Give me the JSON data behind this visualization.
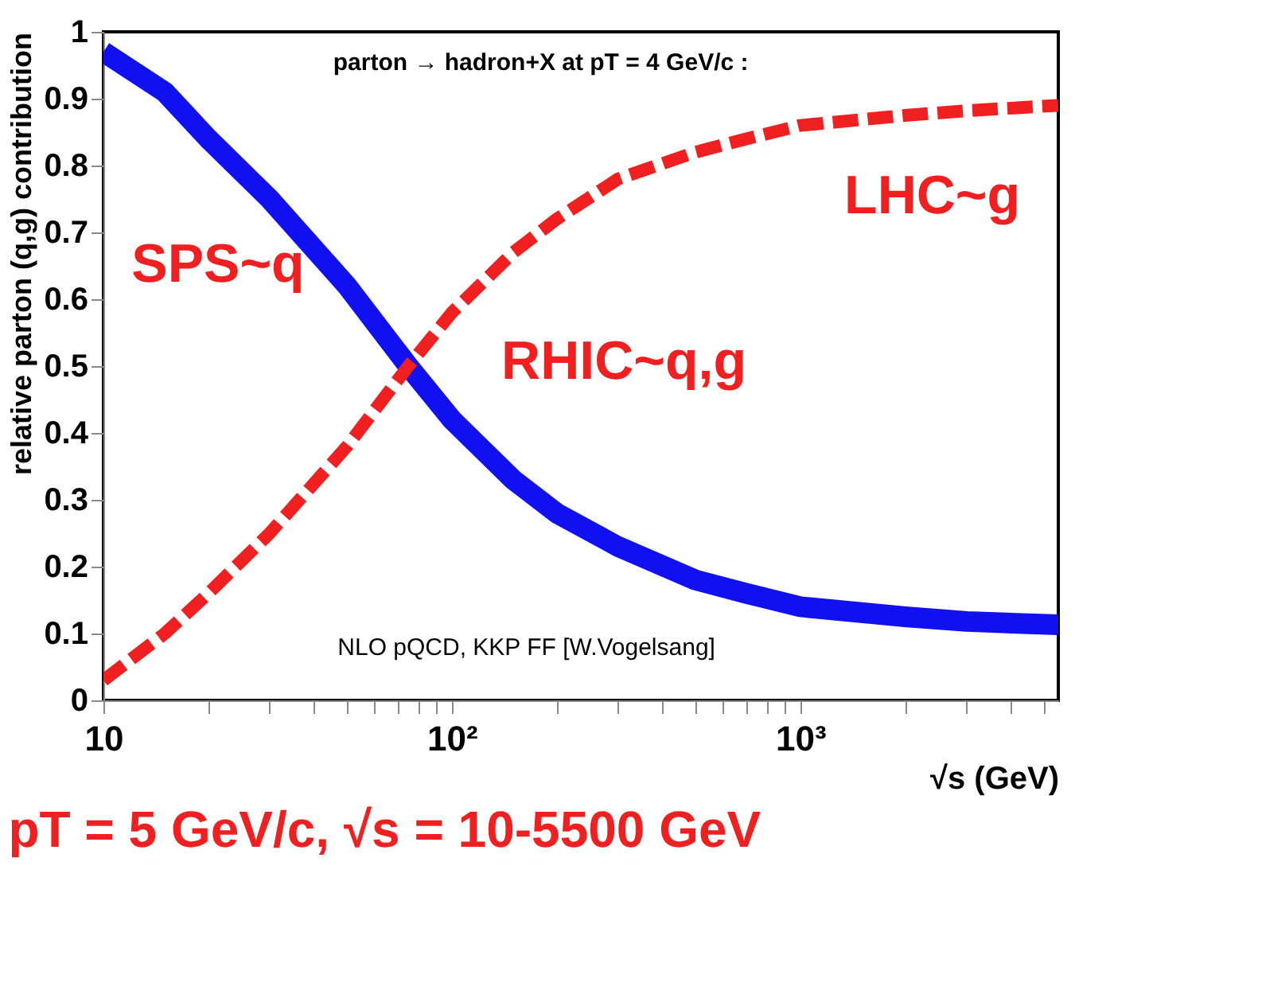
{
  "chart_data": {
    "type": "line",
    "title": "pT = 5 GeV/c, √s = 10-5500 GeV",
    "xlabel": "√s (GeV)",
    "ylabel": "relative parton (q,g) contribution",
    "log": "x",
    "grid": false,
    "marker": "none",
    "x": [
      10,
      15,
      20,
      30,
      50,
      75,
      100,
      150,
      200,
      300,
      500,
      700,
      1000,
      2000,
      3000,
      5500
    ],
    "series": [
      {
        "color": "#1010f0",
        "line_style": "solid",
        "values": [
          0.97,
          0.91,
          0.84,
          0.75,
          0.62,
          0.5,
          0.42,
          0.33,
          0.28,
          0.23,
          0.18,
          0.16,
          0.14,
          0.125,
          0.118,
          0.113
        ]
      },
      {
        "color": "#f02020",
        "line_style": "dashed",
        "values": [
          0.03,
          0.1,
          0.16,
          0.25,
          0.38,
          0.5,
          0.58,
          0.67,
          0.72,
          0.78,
          0.82,
          0.84,
          0.86,
          0.875,
          0.882,
          0.89
        ]
      }
    ],
    "xlim": [
      10,
      5500
    ],
    "ylim": [
      0,
      1
    ],
    "xticks": [
      10,
      {
        "value": 20,
        "label": null
      },
      {
        "value": 30,
        "label": null
      },
      {
        "value": 40,
        "label": null
      },
      {
        "value": 50,
        "label": null
      },
      {
        "value": 60,
        "label": null
      },
      {
        "value": 70,
        "label": null
      },
      {
        "value": 80,
        "label": null
      },
      {
        "value": 90,
        "label": null
      },
      {
        "value": 100,
        "label": "10²"
      },
      {
        "value": 200,
        "label": null
      },
      {
        "value": 300,
        "label": null
      },
      {
        "value": 400,
        "label": null
      },
      {
        "value": 500,
        "label": null
      },
      {
        "value": 600,
        "label": null
      },
      {
        "value": 700,
        "label": null
      },
      {
        "value": 800,
        "label": null
      },
      {
        "value": 900,
        "label": null
      },
      {
        "value": 1000,
        "label": "10³"
      },
      {
        "value": 2000,
        "label": null
      },
      {
        "value": 3000,
        "label": null
      },
      {
        "value": 4000,
        "label": null
      },
      {
        "value": 5000,
        "label": null
      }
    ],
    "yticks": [
      0,
      0.1,
      0.2,
      0.3,
      0.4,
      0.5,
      0.6,
      0.7,
      0.8,
      0.9,
      1
    ],
    "annotations": [
      "parton → hadron+X at pT = 4 GeV/c :",
      "NLO pQCD, KKP FF [W.Vogelsang]",
      "SPS~q",
      "RHIC~q,g",
      "LHC~g"
    ]
  }
}
